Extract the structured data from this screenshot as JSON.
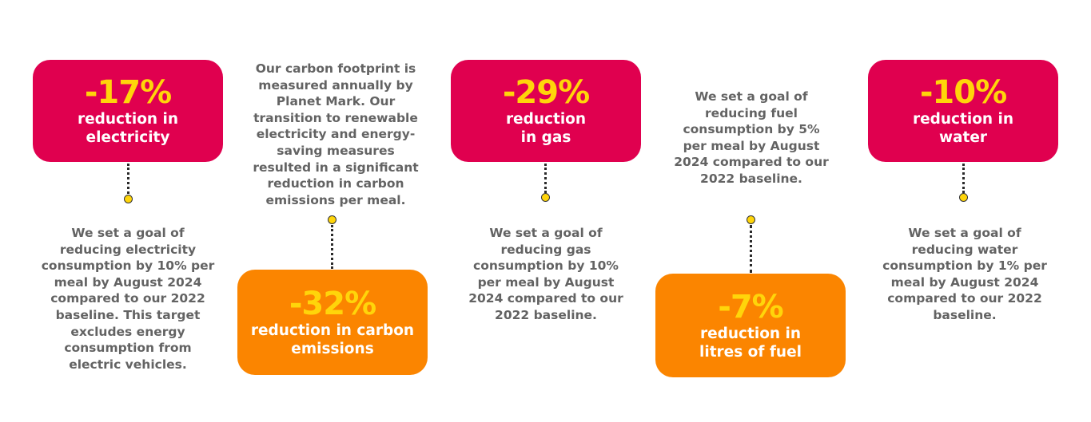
{
  "colors": {
    "pink_card": "#e0004f",
    "orange_card": "#fb8500",
    "percentage_text": "#ffd50a",
    "body_text": "#636363",
    "connector_dot": "#ffd50a"
  },
  "metrics": [
    {
      "percentage": "-17%",
      "label_line1": "reduction in",
      "label_line2": "electricity",
      "description": [
        "We set a goal of",
        "reducing electricity",
        "consumption by 10% per",
        "meal by August 2024",
        "compared to our 2022",
        "baseline. This target",
        "excludes energy",
        "consumption from",
        "electric vehicles."
      ]
    },
    {
      "percentage": "-32%",
      "label_line1": "reduction in carbon",
      "label_line2": "emissions",
      "description": [
        "Our carbon footprint is",
        "measured annually by",
        "Planet Mark. Our",
        "transition to renewable",
        "electricity and energy-",
        "saving measures",
        "resulted in a significant",
        "reduction in carbon",
        "emissions per meal."
      ]
    },
    {
      "percentage": "-29%",
      "label_line1": "reduction",
      "label_line2": "in gas",
      "description": [
        "We set a goal of",
        "reducing gas",
        "consumption by 10%",
        "per meal by August",
        "2024 compared to our",
        "2022 baseline."
      ]
    },
    {
      "percentage": "-7%",
      "label_line1": "reduction in",
      "label_line2": "litres of fuel",
      "description": [
        "We set a goal of",
        "reducing fuel",
        "consumption by 5%",
        "per meal by August",
        "2024 compared to our",
        "2022 baseline."
      ]
    },
    {
      "percentage": "-10%",
      "label_line1": "reduction in",
      "label_line2": "water",
      "description": [
        "We set a goal of",
        "reducing water",
        "consumption by 1% per",
        "meal by August 2024",
        "compared to our 2022",
        "baseline."
      ]
    }
  ]
}
